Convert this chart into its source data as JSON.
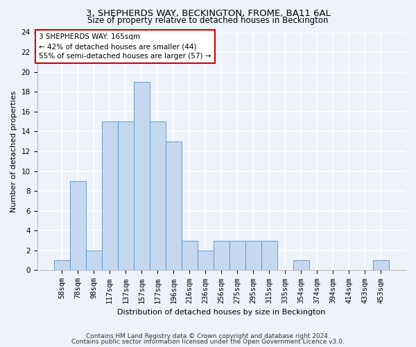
{
  "title1": "3, SHEPHERDS WAY, BECKINGTON, FROME, BA11 6AL",
  "title2": "Size of property relative to detached houses in Beckington",
  "xlabel": "Distribution of detached houses by size in Beckington",
  "ylabel": "Number of detached properties",
  "categories": [
    "58sqm",
    "78sqm",
    "98sqm",
    "117sqm",
    "137sqm",
    "157sqm",
    "177sqm",
    "196sqm",
    "216sqm",
    "236sqm",
    "256sqm",
    "275sqm",
    "295sqm",
    "315sqm",
    "335sqm",
    "354sqm",
    "374sqm",
    "394sqm",
    "414sqm",
    "433sqm",
    "453sqm"
  ],
  "values": [
    1,
    9,
    2,
    15,
    15,
    19,
    15,
    13,
    3,
    2,
    3,
    3,
    3,
    3,
    0,
    1,
    0,
    0,
    0,
    0,
    1
  ],
  "bar_color": "#c5d8f0",
  "bar_edge_color": "#5b9bd5",
  "annotation_box_text": "3 SHEPHERDS WAY: 165sqm\n← 42% of detached houses are smaller (44)\n55% of semi-detached houses are larger (57) →",
  "annotation_box_color": "#ffffff",
  "annotation_box_edge_color": "#cc0000",
  "footer1": "Contains HM Land Registry data © Crown copyright and database right 2024.",
  "footer2": "Contains public sector information licensed under the Open Government Licence v3.0.",
  "ylim": [
    0,
    24
  ],
  "yticks": [
    0,
    2,
    4,
    6,
    8,
    10,
    12,
    14,
    16,
    18,
    20,
    22,
    24
  ],
  "bg_color": "#eef2f9",
  "plot_bg_color": "#eef2f9",
  "grid_color": "#ffffff",
  "title1_fontsize": 9.5,
  "title2_fontsize": 8.5,
  "axis_label_fontsize": 8,
  "tick_fontsize": 7.5,
  "annotation_fontsize": 7.5,
  "footer_fontsize": 6.5
}
